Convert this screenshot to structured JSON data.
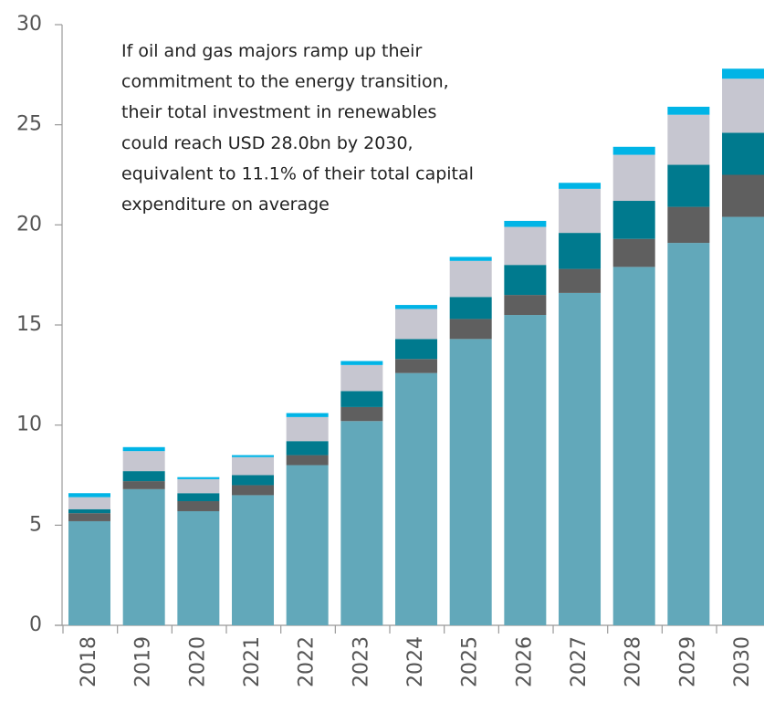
{
  "chart_data": {
    "type": "stacked_bar",
    "annotation": [
      "If oil and gas majors ramp up their",
      "commitment to the energy transition,",
      "their total investment in renewables",
      "could reach USD 28.0bn by 2030,",
      "equivalent to 11.1% of their total capital",
      "expenditure on average"
    ],
    "categories": [
      "2018",
      "2019",
      "2020",
      "2021",
      "2022",
      "2023",
      "2024",
      "2025",
      "2026",
      "2027",
      "2028",
      "2029",
      "2030"
    ],
    "series": [
      {
        "color": "#62a8ba",
        "values": [
          5.2,
          6.8,
          5.7,
          6.5,
          8.0,
          10.2,
          12.6,
          14.3,
          15.5,
          16.6,
          17.9,
          19.1,
          20.4
        ]
      },
      {
        "color": "#5f5f5f",
        "values": [
          0.4,
          0.4,
          0.5,
          0.5,
          0.5,
          0.7,
          0.7,
          1.0,
          1.0,
          1.2,
          1.4,
          1.8,
          2.1
        ]
      },
      {
        "color": "#007a8e",
        "values": [
          0.2,
          0.5,
          0.4,
          0.5,
          0.7,
          0.8,
          1.0,
          1.1,
          1.5,
          1.8,
          1.9,
          2.1,
          2.1
        ]
      },
      {
        "color": "#c6c6d0",
        "values": [
          0.6,
          1.0,
          0.7,
          0.9,
          1.2,
          1.3,
          1.5,
          1.8,
          1.9,
          2.2,
          2.3,
          2.5,
          2.7
        ]
      },
      {
        "color": "#00b4e6",
        "values": [
          0.2,
          0.2,
          0.1,
          0.1,
          0.2,
          0.2,
          0.2,
          0.2,
          0.3,
          0.3,
          0.4,
          0.4,
          0.5
        ]
      }
    ],
    "ylim": [
      0,
      30
    ],
    "yticks": [
      0,
      5,
      10,
      15,
      20,
      25,
      30
    ]
  }
}
